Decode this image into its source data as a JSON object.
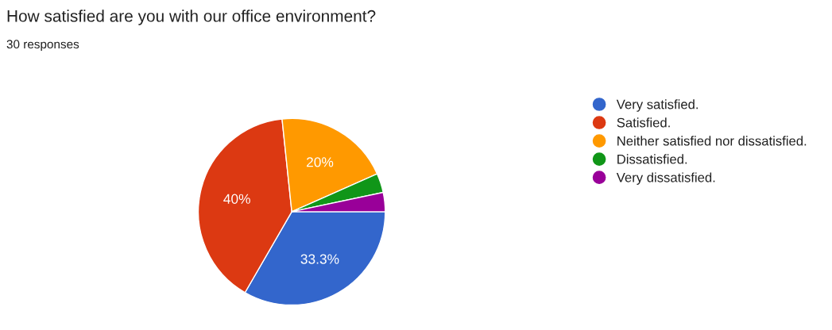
{
  "chart_data": {
    "type": "pie",
    "title": "How satisfied are you with our office environment?",
    "subtitle": "30 responses",
    "categories": [
      "Very satisfied.",
      "Satisfied.",
      "Neither satisfied nor dissatisfied.",
      "Dissatisfied.",
      "Very dissatisfied."
    ],
    "values": [
      33.34,
      40,
      20,
      3.33,
      3.33
    ],
    "colors": [
      "#3366cc",
      "#dc3912",
      "#ff9900",
      "#109618",
      "#990099"
    ],
    "value_labels": [
      "33.3%",
      "40%",
      "20%",
      null,
      null
    ],
    "legend": "right"
  }
}
